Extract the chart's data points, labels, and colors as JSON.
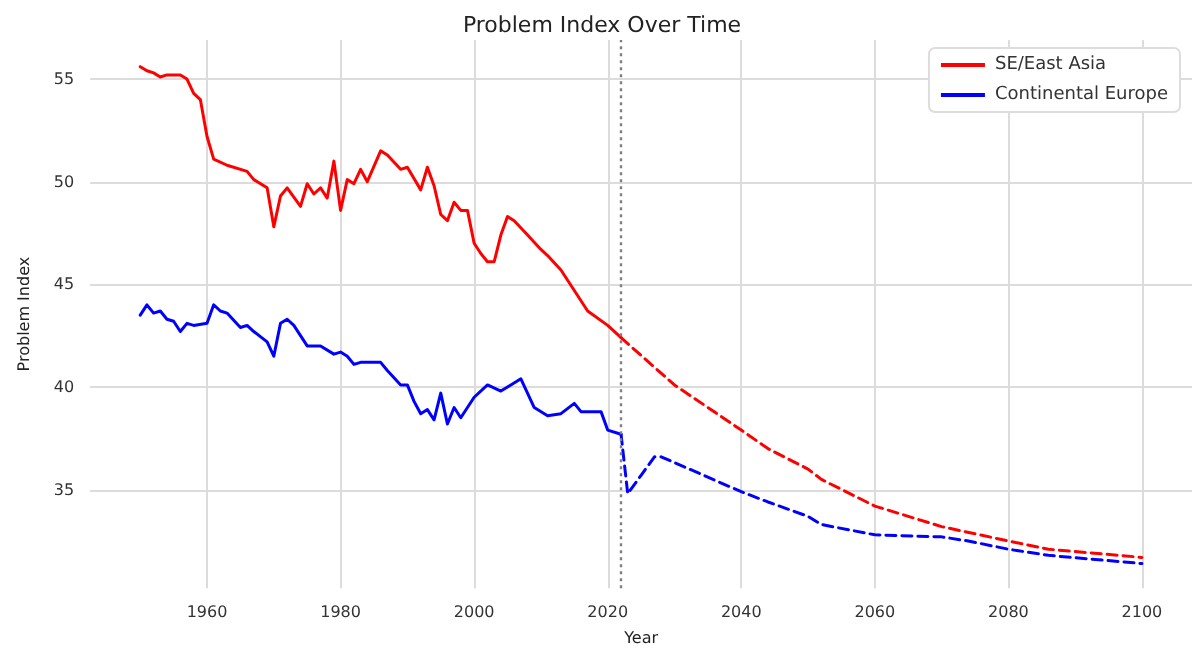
{
  "chart_data": {
    "type": "line",
    "title": "Problem Index Over Time",
    "xlabel": "Year",
    "ylabel": "Problem Index",
    "xlim": [
      1942.5,
      2107.5
    ],
    "xticks": [
      1960,
      1980,
      2000,
      2020,
      2040,
      2060,
      2080,
      2100
    ],
    "ylim": [
      30.2,
      56.9
    ],
    "yticks": [
      35,
      40,
      45,
      50,
      55
    ],
    "grid": true,
    "legend": "top right",
    "marker": "none",
    "ref_lines": [
      {
        "axis": "x",
        "value": 2022,
        "color": "#808080",
        "line_style": "dotted"
      }
    ],
    "series": [
      {
        "name": "SE/East Asia",
        "color": "#ff0000",
        "line_style": "solid",
        "x": [
          1950,
          1951,
          1952,
          1953,
          1954,
          1956,
          1957,
          1958,
          1959,
          1960,
          1961,
          1963,
          1966,
          1967,
          1969,
          1970,
          1971,
          1972,
          1974,
          1975,
          1976,
          1977,
          1978,
          1979,
          1980,
          1981,
          1982,
          1983,
          1984,
          1986,
          1987,
          1989,
          1990,
          1992,
          1993,
          1994,
          1995,
          1996,
          1997,
          1998,
          1999,
          2000,
          2001,
          2002,
          2003,
          2004,
          2005,
          2006,
          2008,
          2010,
          2011,
          2013,
          2015,
          2017,
          2020,
          2022
        ],
        "values": [
          55.6,
          55.4,
          55.3,
          55.1,
          55.2,
          55.2,
          55.0,
          54.3,
          54.0,
          52.2,
          51.1,
          50.8,
          50.5,
          50.1,
          49.7,
          47.8,
          49.3,
          49.7,
          48.8,
          49.9,
          49.4,
          49.7,
          49.2,
          51.0,
          48.6,
          50.1,
          49.9,
          50.6,
          50.0,
          51.5,
          51.3,
          50.6,
          50.7,
          49.6,
          50.7,
          49.8,
          48.4,
          48.1,
          49.0,
          48.6,
          48.6,
          47.0,
          46.5,
          46.1,
          46.1,
          47.4,
          48.3,
          48.1,
          47.4,
          46.7,
          46.4,
          45.7,
          44.7,
          43.7,
          43.0,
          42.4
        ]
      },
      {
        "name": "Continental Europe",
        "color": "#0000ff",
        "line_style": "solid",
        "x": [
          1950,
          1951,
          1952,
          1953,
          1954,
          1955,
          1956,
          1957,
          1958,
          1960,
          1961,
          1962,
          1963,
          1965,
          1966,
          1967,
          1969,
          1970,
          1971,
          1972,
          1973,
          1974,
          1975,
          1977,
          1979,
          1980,
          1981,
          1982,
          1983,
          1986,
          1987,
          1989,
          1990,
          1991,
          1992,
          1993,
          1994,
          1995,
          1996,
          1997,
          1998,
          2000,
          2002,
          2004,
          2007,
          2009,
          2011,
          2013,
          2015,
          2016,
          2019,
          2020,
          2022
        ],
        "values": [
          43.5,
          44.0,
          43.6,
          43.7,
          43.3,
          43.2,
          42.7,
          43.1,
          43.0,
          43.1,
          44.0,
          43.7,
          43.6,
          42.9,
          43.0,
          42.7,
          42.2,
          41.5,
          43.1,
          43.3,
          43.0,
          42.5,
          42.0,
          42.0,
          41.6,
          41.7,
          41.5,
          41.1,
          41.2,
          41.2,
          40.8,
          40.1,
          40.1,
          39.3,
          38.7,
          38.9,
          38.4,
          39.7,
          38.2,
          39.0,
          38.5,
          39.5,
          40.1,
          39.8,
          40.4,
          39.0,
          38.6,
          38.7,
          39.2,
          38.8,
          38.8,
          37.9,
          37.7
        ]
      },
      {
        "color": "#ff0000",
        "line_style": "dashed",
        "x": [
          2022,
          2030,
          2040,
          2044,
          2050,
          2052,
          2060,
          2070,
          2080,
          2086,
          2100
        ],
        "values": [
          42.4,
          40.1,
          37.9,
          37.0,
          36.0,
          35.5,
          34.2,
          33.2,
          32.5,
          32.1,
          31.7
        ]
      },
      {
        "color": "#0000ff",
        "line_style": "dashed",
        "x": [
          2022,
          2023,
          2025,
          2027,
          2028,
          2040,
          2044,
          2050,
          2052,
          2060,
          2070,
          2074,
          2080,
          2086,
          2100
        ],
        "values": [
          37.7,
          34.8,
          35.7,
          36.6,
          36.6,
          34.9,
          34.4,
          33.7,
          33.3,
          32.8,
          32.7,
          32.5,
          32.1,
          31.8,
          31.4
        ]
      }
    ]
  }
}
